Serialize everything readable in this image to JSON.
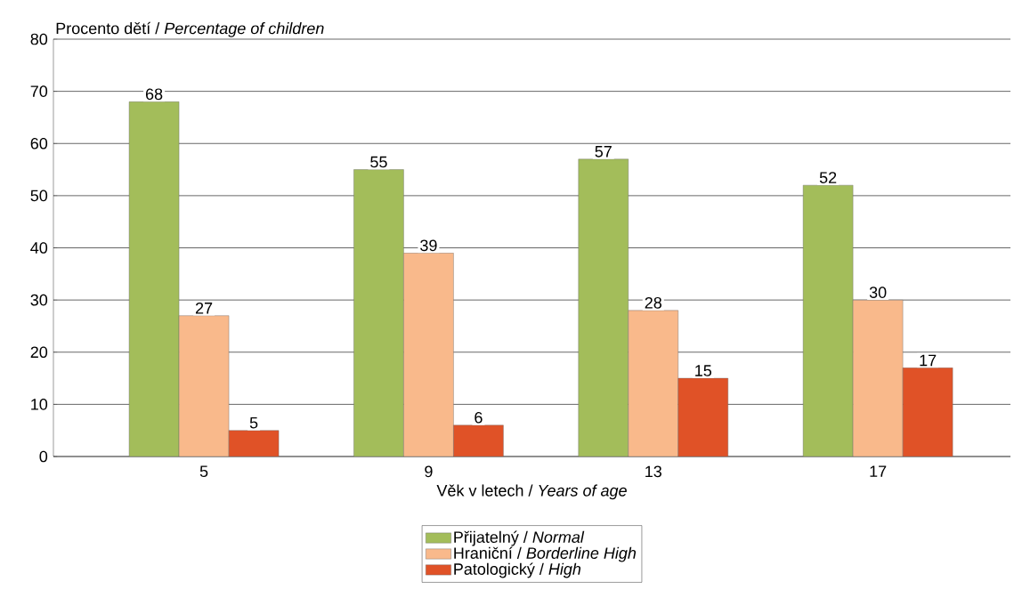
{
  "chart_data": {
    "type": "bar",
    "ylabel": "Procento dětí / *Percentage of children*",
    "xlabel": "Věk v letech / *Years of age*",
    "categories": [
      "5",
      "9",
      "13",
      "17"
    ],
    "series": [
      {
        "name": "Přijatelný / *Normal*",
        "color": "#a3bd5a",
        "values": [
          68,
          55,
          57,
          52
        ]
      },
      {
        "name": "Hraniční / *Borderline High*",
        "color": "#f9b98b",
        "values": [
          27,
          39,
          28,
          30
        ]
      },
      {
        "name": "Patologický / *High*",
        "color": "#e05227",
        "values": [
          5,
          6,
          15,
          17
        ]
      }
    ],
    "ylim": [
      0,
      80
    ],
    "yticks": [
      0,
      10,
      20,
      30,
      40,
      50,
      60,
      70,
      80
    ],
    "grid": "y",
    "legend": "bottom",
    "data_labels": true
  }
}
